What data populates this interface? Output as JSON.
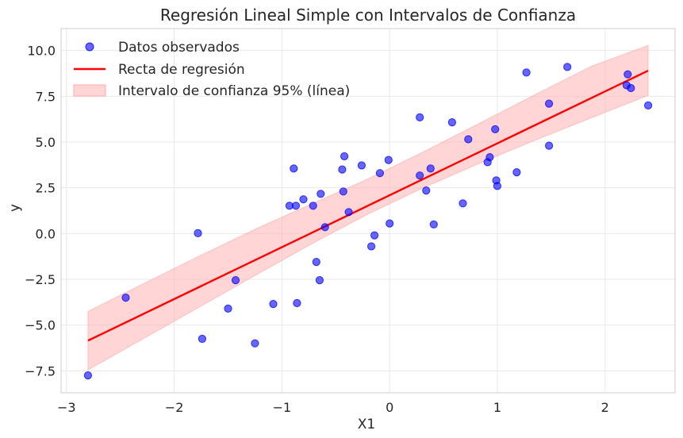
{
  "chart_data": {
    "type": "scatter",
    "title": "Regresión Lineal Simple con Intervalos de Confianza",
    "xlabel": "X1",
    "ylabel": "y",
    "xlim": [
      -3.05,
      2.65
    ],
    "ylim": [
      -8.7,
      11.2
    ],
    "xticks": [
      -3,
      -2,
      -1,
      0,
      1,
      2
    ],
    "xtick_labels": [
      "−3",
      "−2",
      "−1",
      "0",
      "1",
      "2"
    ],
    "yticks": [
      -7.5,
      -5.0,
      -2.5,
      0.0,
      2.5,
      5.0,
      7.5,
      10.0
    ],
    "ytick_labels": [
      "−7.5",
      "−5.0",
      "−2.5",
      "0.0",
      "2.5",
      "5.0",
      "7.5",
      "10.0"
    ],
    "grid": true,
    "legend_position": "top-left",
    "colors": {
      "points": "#0000ff",
      "line": "#ff0000",
      "band": "#ffb3b3",
      "grid": "#e8e8e8",
      "spine": "#cccccc"
    },
    "series": [
      {
        "name": "Datos observados",
        "kind": "scatter",
        "points": [
          [
            -2.8,
            -7.75
          ],
          [
            -2.45,
            -3.5
          ],
          [
            -1.78,
            0.02
          ],
          [
            -1.74,
            -5.75
          ],
          [
            -1.5,
            -4.1
          ],
          [
            -1.43,
            -2.55
          ],
          [
            -1.25,
            -6.0
          ],
          [
            -1.08,
            -3.85
          ],
          [
            -0.93,
            1.52
          ],
          [
            -0.89,
            3.55
          ],
          [
            -0.87,
            1.52
          ],
          [
            -0.86,
            -3.8
          ],
          [
            -0.8,
            1.87
          ],
          [
            -0.71,
            1.52
          ],
          [
            -0.68,
            -1.55
          ],
          [
            -0.65,
            -2.55
          ],
          [
            -0.64,
            2.17
          ],
          [
            -0.6,
            0.35
          ],
          [
            -0.44,
            3.5
          ],
          [
            -0.43,
            2.3
          ],
          [
            -0.42,
            4.22
          ],
          [
            -0.38,
            1.17
          ],
          [
            -0.26,
            3.72
          ],
          [
            -0.17,
            -0.7
          ],
          [
            -0.14,
            -0.1
          ],
          [
            -0.09,
            3.3
          ],
          [
            -0.01,
            4.02
          ],
          [
            0.0,
            0.55
          ],
          [
            0.28,
            6.35
          ],
          [
            0.28,
            3.17
          ],
          [
            0.34,
            2.35
          ],
          [
            0.38,
            3.55
          ],
          [
            0.41,
            0.5
          ],
          [
            0.58,
            6.08
          ],
          [
            0.68,
            1.65
          ],
          [
            0.73,
            5.15
          ],
          [
            0.91,
            3.9
          ],
          [
            0.93,
            4.17
          ],
          [
            0.98,
            5.7
          ],
          [
            0.99,
            2.9
          ],
          [
            1.0,
            2.6
          ],
          [
            1.18,
            3.35
          ],
          [
            1.27,
            8.8
          ],
          [
            1.48,
            7.1
          ],
          [
            1.48,
            4.8
          ],
          [
            1.65,
            9.1
          ],
          [
            2.2,
            8.1
          ],
          [
            2.21,
            8.7
          ],
          [
            2.24,
            7.95
          ],
          [
            2.4,
            7.0
          ]
        ]
      },
      {
        "name": "Recta de regresión",
        "kind": "line",
        "points": [
          [
            -2.8,
            -5.85
          ],
          [
            2.4,
            8.9
          ]
        ]
      },
      {
        "name": "Intervalo de confianza 95% (línea)",
        "kind": "band",
        "x": [
          -2.8,
          -2.28,
          -1.76,
          -1.24,
          -0.72,
          -0.2,
          0.32,
          0.84,
          1.36,
          1.88,
          2.4
        ],
        "lower": [
          -7.45,
          -5.72,
          -3.99,
          -2.26,
          -0.55,
          1.07,
          2.52,
          3.85,
          5.12,
          6.34,
          7.55
        ],
        "upper": [
          -4.25,
          -2.72,
          -1.21,
          0.26,
          1.63,
          2.99,
          4.48,
          6.04,
          7.62,
          9.16,
          10.28
        ]
      }
    ]
  }
}
